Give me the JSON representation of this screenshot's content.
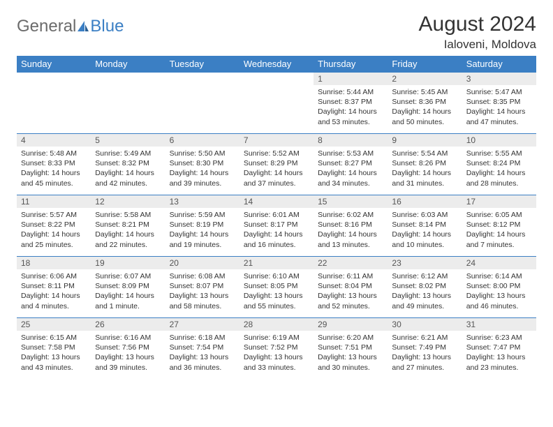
{
  "logo": {
    "general": "General",
    "blue": "Blue"
  },
  "title": "August 2024",
  "location": "Ialoveni, Moldova",
  "colors": {
    "header_bg": "#3b7fc4",
    "header_text": "#ffffff",
    "daynum_bg": "#ececec",
    "border": "#3b7fc4",
    "text": "#333333",
    "logo_gray": "#6b6b6b",
    "logo_blue": "#3b7fc4",
    "page_bg": "#ffffff"
  },
  "weekdays": [
    "Sunday",
    "Monday",
    "Tuesday",
    "Wednesday",
    "Thursday",
    "Friday",
    "Saturday"
  ],
  "layout": {
    "first_weekday_index": 4,
    "days_in_month": 31,
    "rows": 5,
    "font_family": "Arial",
    "header_fontsize": 13,
    "daynum_fontsize": 12,
    "info_fontsize": 10.5
  },
  "days": {
    "1": {
      "sunrise": "5:44 AM",
      "sunset": "8:37 PM",
      "daylight": "14 hours and 53 minutes."
    },
    "2": {
      "sunrise": "5:45 AM",
      "sunset": "8:36 PM",
      "daylight": "14 hours and 50 minutes."
    },
    "3": {
      "sunrise": "5:47 AM",
      "sunset": "8:35 PM",
      "daylight": "14 hours and 47 minutes."
    },
    "4": {
      "sunrise": "5:48 AM",
      "sunset": "8:33 PM",
      "daylight": "14 hours and 45 minutes."
    },
    "5": {
      "sunrise": "5:49 AM",
      "sunset": "8:32 PM",
      "daylight": "14 hours and 42 minutes."
    },
    "6": {
      "sunrise": "5:50 AM",
      "sunset": "8:30 PM",
      "daylight": "14 hours and 39 minutes."
    },
    "7": {
      "sunrise": "5:52 AM",
      "sunset": "8:29 PM",
      "daylight": "14 hours and 37 minutes."
    },
    "8": {
      "sunrise": "5:53 AM",
      "sunset": "8:27 PM",
      "daylight": "14 hours and 34 minutes."
    },
    "9": {
      "sunrise": "5:54 AM",
      "sunset": "8:26 PM",
      "daylight": "14 hours and 31 minutes."
    },
    "10": {
      "sunrise": "5:55 AM",
      "sunset": "8:24 PM",
      "daylight": "14 hours and 28 minutes."
    },
    "11": {
      "sunrise": "5:57 AM",
      "sunset": "8:22 PM",
      "daylight": "14 hours and 25 minutes."
    },
    "12": {
      "sunrise": "5:58 AM",
      "sunset": "8:21 PM",
      "daylight": "14 hours and 22 minutes."
    },
    "13": {
      "sunrise": "5:59 AM",
      "sunset": "8:19 PM",
      "daylight": "14 hours and 19 minutes."
    },
    "14": {
      "sunrise": "6:01 AM",
      "sunset": "8:17 PM",
      "daylight": "14 hours and 16 minutes."
    },
    "15": {
      "sunrise": "6:02 AM",
      "sunset": "8:16 PM",
      "daylight": "14 hours and 13 minutes."
    },
    "16": {
      "sunrise": "6:03 AM",
      "sunset": "8:14 PM",
      "daylight": "14 hours and 10 minutes."
    },
    "17": {
      "sunrise": "6:05 AM",
      "sunset": "8:12 PM",
      "daylight": "14 hours and 7 minutes."
    },
    "18": {
      "sunrise": "6:06 AM",
      "sunset": "8:11 PM",
      "daylight": "14 hours and 4 minutes."
    },
    "19": {
      "sunrise": "6:07 AM",
      "sunset": "8:09 PM",
      "daylight": "14 hours and 1 minute."
    },
    "20": {
      "sunrise": "6:08 AM",
      "sunset": "8:07 PM",
      "daylight": "13 hours and 58 minutes."
    },
    "21": {
      "sunrise": "6:10 AM",
      "sunset": "8:05 PM",
      "daylight": "13 hours and 55 minutes."
    },
    "22": {
      "sunrise": "6:11 AM",
      "sunset": "8:04 PM",
      "daylight": "13 hours and 52 minutes."
    },
    "23": {
      "sunrise": "6:12 AM",
      "sunset": "8:02 PM",
      "daylight": "13 hours and 49 minutes."
    },
    "24": {
      "sunrise": "6:14 AM",
      "sunset": "8:00 PM",
      "daylight": "13 hours and 46 minutes."
    },
    "25": {
      "sunrise": "6:15 AM",
      "sunset": "7:58 PM",
      "daylight": "13 hours and 43 minutes."
    },
    "26": {
      "sunrise": "6:16 AM",
      "sunset": "7:56 PM",
      "daylight": "13 hours and 39 minutes."
    },
    "27": {
      "sunrise": "6:18 AM",
      "sunset": "7:54 PM",
      "daylight": "13 hours and 36 minutes."
    },
    "28": {
      "sunrise": "6:19 AM",
      "sunset": "7:52 PM",
      "daylight": "13 hours and 33 minutes."
    },
    "29": {
      "sunrise": "6:20 AM",
      "sunset": "7:51 PM",
      "daylight": "13 hours and 30 minutes."
    },
    "30": {
      "sunrise": "6:21 AM",
      "sunset": "7:49 PM",
      "daylight": "13 hours and 27 minutes."
    },
    "31": {
      "sunrise": "6:23 AM",
      "sunset": "7:47 PM",
      "daylight": "13 hours and 23 minutes."
    }
  },
  "labels": {
    "sunrise_prefix": "Sunrise: ",
    "sunset_prefix": "Sunset: ",
    "daylight_prefix": "Daylight: "
  }
}
